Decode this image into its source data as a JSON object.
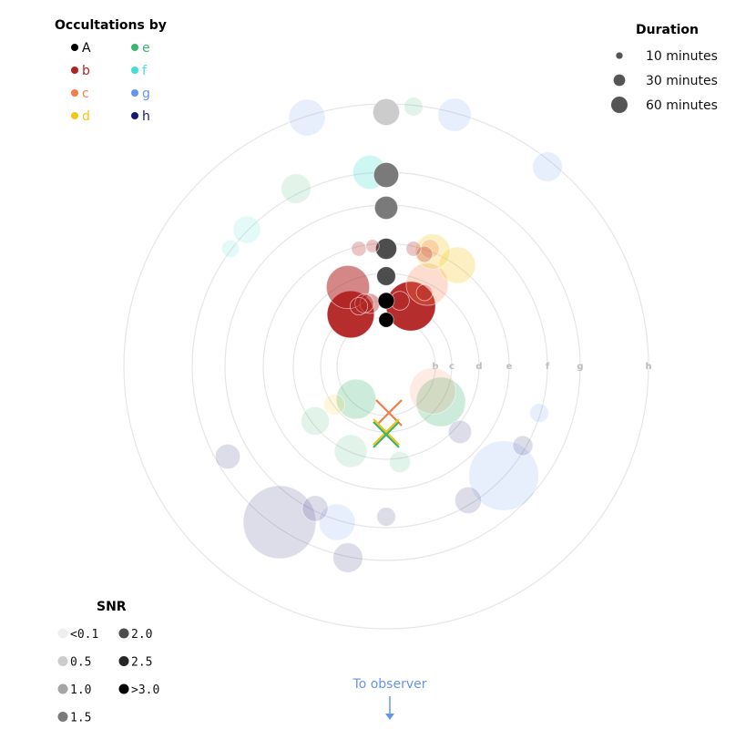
{
  "chart_data": {
    "type": "scatter",
    "occultations_legend": {
      "title": "Occultations by",
      "entries": [
        {
          "name": "A",
          "color": "#000000"
        },
        {
          "name": "b",
          "color": "#b22222"
        },
        {
          "name": "c",
          "color": "#f47c4a"
        },
        {
          "name": "d",
          "color": "#f5c518"
        },
        {
          "name": "e",
          "color": "#3cb371"
        },
        {
          "name": "f",
          "color": "#40e0d0"
        },
        {
          "name": "g",
          "color": "#6495ed"
        },
        {
          "name": "h",
          "color": "#191970"
        }
      ]
    },
    "duration_legend": {
      "title": "Duration",
      "entries": [
        {
          "label": "10 minutes",
          "minutes": 10
        },
        {
          "label": "30 minutes",
          "minutes": 30
        },
        {
          "label": "60 minutes",
          "minutes": 60
        }
      ]
    },
    "snr_legend": {
      "title": "SNR",
      "entries": [
        {
          "label": "<0.1",
          "value": 0.1,
          "color": "#eeeeee"
        },
        {
          "label": "0.5",
          "value": 0.5,
          "color": "#cccccc"
        },
        {
          "label": "1.0",
          "value": 1.0,
          "color": "#a6a6a6"
        },
        {
          "label": "1.5",
          "value": 1.5,
          "color": "#7a7a7a"
        },
        {
          "label": "2.0",
          "value": 2.0,
          "color": "#4d4d4d"
        },
        {
          "label": "2.5",
          "value": 2.5,
          "color": "#262626"
        },
        {
          "label": ">3.0",
          "value": 3.0,
          "color": "#000000"
        }
      ]
    },
    "orbits": [
      {
        "name": "b",
        "r": 0.18
      },
      {
        "name": "c",
        "r": 0.24
      },
      {
        "name": "d",
        "r": 0.34
      },
      {
        "name": "e",
        "r": 0.45
      },
      {
        "name": "f",
        "r": 0.59
      },
      {
        "name": "g",
        "r": 0.71
      },
      {
        "name": "h",
        "r": 0.96
      }
    ],
    "points": [
      {
        "body": "A",
        "x": 0.0,
        "y": 0.93,
        "minutes": 16,
        "snr": 0.5
      },
      {
        "body": "A",
        "x": 0.0,
        "y": 0.7,
        "minutes": 14,
        "snr": 1.5
      },
      {
        "body": "A",
        "x": 0.0,
        "y": 0.58,
        "minutes": 12,
        "snr": 1.5
      },
      {
        "body": "A",
        "x": 0.0,
        "y": 0.43,
        "minutes": 10,
        "snr": 2.0
      },
      {
        "body": "A",
        "x": 0.0,
        "y": 0.33,
        "minutes": 8,
        "snr": 2.0
      },
      {
        "body": "A",
        "x": 0.0,
        "y": 0.24,
        "minutes": 6,
        "snr": 3.0
      },
      {
        "body": "A",
        "x": 0.0,
        "y": 0.17,
        "minutes": 5,
        "snr": 3.0
      },
      {
        "body": "b",
        "x": -0.13,
        "y": 0.19,
        "minutes": 50,
        "snr": 3.0
      },
      {
        "body": "b",
        "x": 0.09,
        "y": 0.22,
        "minutes": 55,
        "snr": 3.0
      },
      {
        "body": "b",
        "x": -0.14,
        "y": 0.29,
        "minutes": 42,
        "snr": 1.5
      },
      {
        "body": "b",
        "x": -0.06,
        "y": 0.23,
        "minutes": 9,
        "snr": 1.0
      },
      {
        "body": "b",
        "x": -0.08,
        "y": 0.23,
        "minutes": 8,
        "snr": 1.0
      },
      {
        "body": "b",
        "x": -0.1,
        "y": 0.22,
        "minutes": 7,
        "snr": 0.5
      },
      {
        "body": "b",
        "x": 0.05,
        "y": 0.24,
        "minutes": 8,
        "snr": 1.0
      },
      {
        "body": "b",
        "x": 0.14,
        "y": 0.27,
        "minutes": 6,
        "snr": 0.5
      },
      {
        "body": "b",
        "x": -0.1,
        "y": 0.43,
        "minutes": 5,
        "snr": 0.5
      },
      {
        "body": "b",
        "x": 0.1,
        "y": 0.43,
        "minutes": 5,
        "snr": 0.5
      },
      {
        "body": "b",
        "x": 0.14,
        "y": 0.41,
        "minutes": 6,
        "snr": 0.5
      },
      {
        "body": "b",
        "x": -0.05,
        "y": 0.44,
        "minutes": 4,
        "snr": 0.5
      },
      {
        "body": "c",
        "x": 0.15,
        "y": 0.3,
        "minutes": 40,
        "snr": 0.5
      },
      {
        "body": "c",
        "x": 0.17,
        "y": -0.09,
        "minutes": 48,
        "snr": 0.1
      },
      {
        "body": "c",
        "x": 0.16,
        "y": 0.43,
        "minutes": 8,
        "snr": 0.5
      },
      {
        "body": "d",
        "x": 0.17,
        "y": 0.42,
        "minutes": 28,
        "snr": 0.5
      },
      {
        "body": "d",
        "x": 0.26,
        "y": 0.37,
        "minutes": 30,
        "snr": 0.5
      },
      {
        "body": "d",
        "x": -0.19,
        "y": -0.14,
        "minutes": 10,
        "snr": 0.1
      },
      {
        "body": "e",
        "x": -0.11,
        "y": -0.12,
        "minutes": 36,
        "snr": 0.5
      },
      {
        "body": "e",
        "x": 0.2,
        "y": -0.13,
        "minutes": 55,
        "snr": 0.5
      },
      {
        "body": "e",
        "x": -0.26,
        "y": -0.2,
        "minutes": 18,
        "snr": 0.1
      },
      {
        "body": "e",
        "x": -0.13,
        "y": -0.31,
        "minutes": 24,
        "snr": 0.1
      },
      {
        "body": "e",
        "x": 0.05,
        "y": -0.35,
        "minutes": 10,
        "snr": 0.1
      },
      {
        "body": "e",
        "x": -0.33,
        "y": 0.65,
        "minutes": 20,
        "snr": 0.1
      },
      {
        "body": "e",
        "x": 0.1,
        "y": 0.95,
        "minutes": 8,
        "snr": 0.1
      },
      {
        "body": "f",
        "x": -0.06,
        "y": 0.71,
        "minutes": 26,
        "snr": 0.5
      },
      {
        "body": "f",
        "x": -0.51,
        "y": 0.5,
        "minutes": 17,
        "snr": 0.1
      },
      {
        "body": "f",
        "x": -0.57,
        "y": 0.43,
        "minutes": 7,
        "snr": 0.1
      },
      {
        "body": "g",
        "x": -0.29,
        "y": 0.91,
        "minutes": 30,
        "snr": 0.1
      },
      {
        "body": "g",
        "x": 0.25,
        "y": 0.92,
        "minutes": 25,
        "snr": 0.1
      },
      {
        "body": "g",
        "x": 0.59,
        "y": 0.73,
        "minutes": 20,
        "snr": 0.1
      },
      {
        "body": "g",
        "x": 0.43,
        "y": -0.4,
        "minutes": 110,
        "snr": 0.1
      },
      {
        "body": "g",
        "x": 0.56,
        "y": -0.17,
        "minutes": 8,
        "snr": 0.1
      },
      {
        "body": "g",
        "x": -0.18,
        "y": -0.57,
        "minutes": 30,
        "snr": 0.1
      },
      {
        "body": "h",
        "x": -0.39,
        "y": -0.57,
        "minutes": 120,
        "snr": 0.1
      },
      {
        "body": "h",
        "x": 0.27,
        "y": -0.24,
        "minutes": 12,
        "snr": 0.1
      },
      {
        "body": "h",
        "x": -0.26,
        "y": -0.52,
        "minutes": 15,
        "snr": 0.1
      },
      {
        "body": "h",
        "x": 0.3,
        "y": -0.49,
        "minutes": 16,
        "snr": 0.1
      },
      {
        "body": "h",
        "x": 0.5,
        "y": -0.29,
        "minutes": 9,
        "snr": 0.1
      },
      {
        "body": "h",
        "x": -0.58,
        "y": -0.33,
        "minutes": 14,
        "snr": 0.1
      },
      {
        "body": "h",
        "x": -0.14,
        "y": -0.7,
        "minutes": 20,
        "snr": 0.1
      },
      {
        "body": "h",
        "x": 0.0,
        "y": -0.55,
        "minutes": 8,
        "snr": 0.1
      }
    ],
    "star_markers": [
      {
        "name": "c",
        "x": 0.01,
        "y": -0.17,
        "color": "#f47c4a"
      },
      {
        "name": "d",
        "x": 0.0,
        "y": -0.24,
        "color": "#f5c518"
      },
      {
        "name": "e",
        "x": 0.0,
        "y": -0.25,
        "color": "#3cb371"
      }
    ],
    "observer": {
      "label": "To observer"
    }
  }
}
